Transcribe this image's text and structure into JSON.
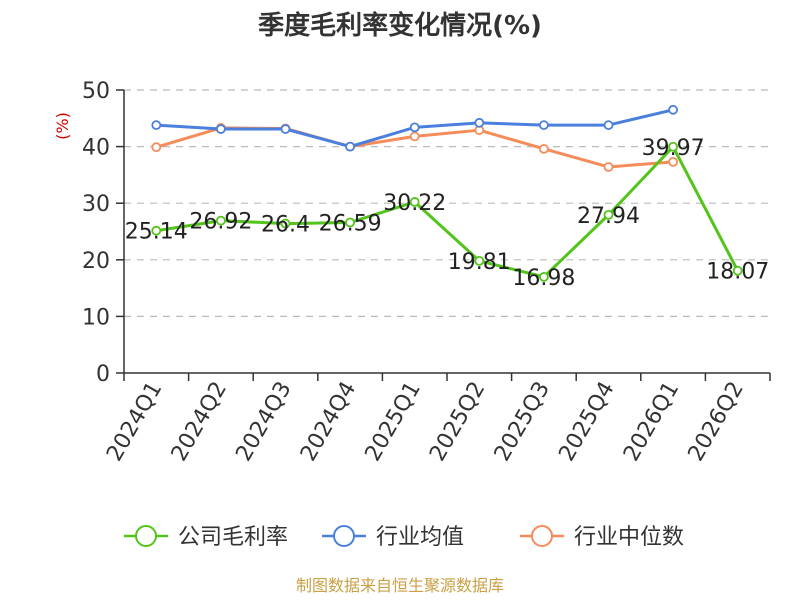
{
  "chart_data": {
    "type": "line",
    "title": "季度毛利率变化情况(%)",
    "ylabel": "(%)",
    "ylim": [
      0,
      50
    ],
    "yticks": [
      0,
      10,
      20,
      30,
      40,
      50
    ],
    "grid": true,
    "legend_position": "bottom",
    "categories": [
      "2024Q1",
      "2024Q2",
      "2024Q3",
      "2024Q4",
      "2025Q1",
      "2025Q2",
      "2025Q3",
      "2025Q4",
      "2026Q1",
      "2026Q2"
    ],
    "series": [
      {
        "name": "公司毛利率",
        "color": "#52c41a",
        "values": [
          25.14,
          26.92,
          26.4,
          26.59,
          30.22,
          19.81,
          16.98,
          27.94,
          39.97,
          18.07
        ],
        "labels": true
      },
      {
        "name": "行业均值",
        "color": "#4a7fde",
        "values": [
          43.8,
          43.1,
          43.1,
          40.0,
          43.4,
          44.2,
          43.8,
          43.8,
          46.5,
          null
        ],
        "labels": false
      },
      {
        "name": "行业中位数",
        "color": "#f58c5a",
        "values": [
          39.9,
          43.3,
          43.2,
          40.0,
          41.8,
          42.9,
          39.6,
          36.4,
          37.3,
          null
        ],
        "labels": false
      }
    ],
    "source": "制图数据来自恒生聚源数据库",
    "source_color": "#c8a045",
    "ylabel_color": "#cc0000"
  }
}
